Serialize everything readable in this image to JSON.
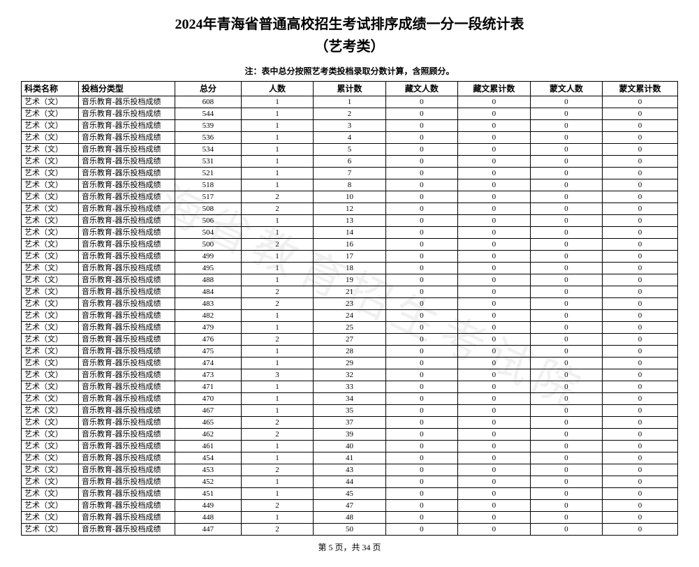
{
  "title_line1": "2024年青海省普通高校招生考试排序成绩一分一段统计表",
  "title_line2": "（艺考类）",
  "note": "注：表中总分按照艺考类投档录取分数计算，含照顾分。",
  "watermark": "青海省教育招生考试院",
  "footer": "第 5 页，共 34 页",
  "columns": [
    "科类名称",
    "投档分类型",
    "总分",
    "人数",
    "累计数",
    "藏文人数",
    "藏文累计数",
    "蒙文人数",
    "蒙文累计数"
  ],
  "category_label": "艺术（文）",
  "type_label": "音乐教育-器乐投档成绩",
  "rows": [
    {
      "score": 608,
      "count": 1,
      "cum": 1,
      "zw": 0,
      "zwc": 0,
      "mw": 0,
      "mwc": 0
    },
    {
      "score": 544,
      "count": 1,
      "cum": 2,
      "zw": 0,
      "zwc": 0,
      "mw": 0,
      "mwc": 0
    },
    {
      "score": 539,
      "count": 1,
      "cum": 3,
      "zw": 0,
      "zwc": 0,
      "mw": 0,
      "mwc": 0
    },
    {
      "score": 536,
      "count": 1,
      "cum": 4,
      "zw": 0,
      "zwc": 0,
      "mw": 0,
      "mwc": 0
    },
    {
      "score": 534,
      "count": 1,
      "cum": 5,
      "zw": 0,
      "zwc": 0,
      "mw": 0,
      "mwc": 0
    },
    {
      "score": 531,
      "count": 1,
      "cum": 6,
      "zw": 0,
      "zwc": 0,
      "mw": 0,
      "mwc": 0
    },
    {
      "score": 521,
      "count": 1,
      "cum": 7,
      "zw": 0,
      "zwc": 0,
      "mw": 0,
      "mwc": 0
    },
    {
      "score": 518,
      "count": 1,
      "cum": 8,
      "zw": 0,
      "zwc": 0,
      "mw": 0,
      "mwc": 0
    },
    {
      "score": 517,
      "count": 2,
      "cum": 10,
      "zw": 0,
      "zwc": 0,
      "mw": 0,
      "mwc": 0
    },
    {
      "score": 508,
      "count": 2,
      "cum": 12,
      "zw": 0,
      "zwc": 0,
      "mw": 0,
      "mwc": 0
    },
    {
      "score": 506,
      "count": 1,
      "cum": 13,
      "zw": 0,
      "zwc": 0,
      "mw": 0,
      "mwc": 0
    },
    {
      "score": 504,
      "count": 1,
      "cum": 14,
      "zw": 0,
      "zwc": 0,
      "mw": 0,
      "mwc": 0
    },
    {
      "score": 500,
      "count": 2,
      "cum": 16,
      "zw": 0,
      "zwc": 0,
      "mw": 0,
      "mwc": 0
    },
    {
      "score": 499,
      "count": 1,
      "cum": 17,
      "zw": 0,
      "zwc": 0,
      "mw": 0,
      "mwc": 0
    },
    {
      "score": 495,
      "count": 1,
      "cum": 18,
      "zw": 0,
      "zwc": 0,
      "mw": 0,
      "mwc": 0
    },
    {
      "score": 488,
      "count": 1,
      "cum": 19,
      "zw": 0,
      "zwc": 0,
      "mw": 0,
      "mwc": 0
    },
    {
      "score": 484,
      "count": 2,
      "cum": 21,
      "zw": 0,
      "zwc": 0,
      "mw": 0,
      "mwc": 0
    },
    {
      "score": 483,
      "count": 2,
      "cum": 23,
      "zw": 0,
      "zwc": 0,
      "mw": 0,
      "mwc": 0
    },
    {
      "score": 482,
      "count": 1,
      "cum": 24,
      "zw": 0,
      "zwc": 0,
      "mw": 0,
      "mwc": 0
    },
    {
      "score": 479,
      "count": 1,
      "cum": 25,
      "zw": 0,
      "zwc": 0,
      "mw": 0,
      "mwc": 0
    },
    {
      "score": 476,
      "count": 2,
      "cum": 27,
      "zw": 0,
      "zwc": 0,
      "mw": 0,
      "mwc": 0
    },
    {
      "score": 475,
      "count": 1,
      "cum": 28,
      "zw": 0,
      "zwc": 0,
      "mw": 0,
      "mwc": 0
    },
    {
      "score": 474,
      "count": 1,
      "cum": 29,
      "zw": 0,
      "zwc": 0,
      "mw": 0,
      "mwc": 0
    },
    {
      "score": 473,
      "count": 3,
      "cum": 32,
      "zw": 0,
      "zwc": 0,
      "mw": 0,
      "mwc": 0
    },
    {
      "score": 471,
      "count": 1,
      "cum": 33,
      "zw": 0,
      "zwc": 0,
      "mw": 0,
      "mwc": 0
    },
    {
      "score": 470,
      "count": 1,
      "cum": 34,
      "zw": 0,
      "zwc": 0,
      "mw": 0,
      "mwc": 0
    },
    {
      "score": 467,
      "count": 1,
      "cum": 35,
      "zw": 0,
      "zwc": 0,
      "mw": 0,
      "mwc": 0
    },
    {
      "score": 465,
      "count": 2,
      "cum": 37,
      "zw": 0,
      "zwc": 0,
      "mw": 0,
      "mwc": 0
    },
    {
      "score": 462,
      "count": 2,
      "cum": 39,
      "zw": 0,
      "zwc": 0,
      "mw": 0,
      "mwc": 0
    },
    {
      "score": 461,
      "count": 1,
      "cum": 40,
      "zw": 0,
      "zwc": 0,
      "mw": 0,
      "mwc": 0
    },
    {
      "score": 454,
      "count": 1,
      "cum": 41,
      "zw": 0,
      "zwc": 0,
      "mw": 0,
      "mwc": 0
    },
    {
      "score": 453,
      "count": 2,
      "cum": 43,
      "zw": 0,
      "zwc": 0,
      "mw": 0,
      "mwc": 0
    },
    {
      "score": 452,
      "count": 1,
      "cum": 44,
      "zw": 0,
      "zwc": 0,
      "mw": 0,
      "mwc": 0
    },
    {
      "score": 451,
      "count": 1,
      "cum": 45,
      "zw": 0,
      "zwc": 0,
      "mw": 0,
      "mwc": 0
    },
    {
      "score": 449,
      "count": 2,
      "cum": 47,
      "zw": 0,
      "zwc": 0,
      "mw": 0,
      "mwc": 0
    },
    {
      "score": 448,
      "count": 1,
      "cum": 48,
      "zw": 0,
      "zwc": 0,
      "mw": 0,
      "mwc": 0
    },
    {
      "score": 447,
      "count": 2,
      "cum": 50,
      "zw": 0,
      "zwc": 0,
      "mw": 0,
      "mwc": 0
    }
  ]
}
